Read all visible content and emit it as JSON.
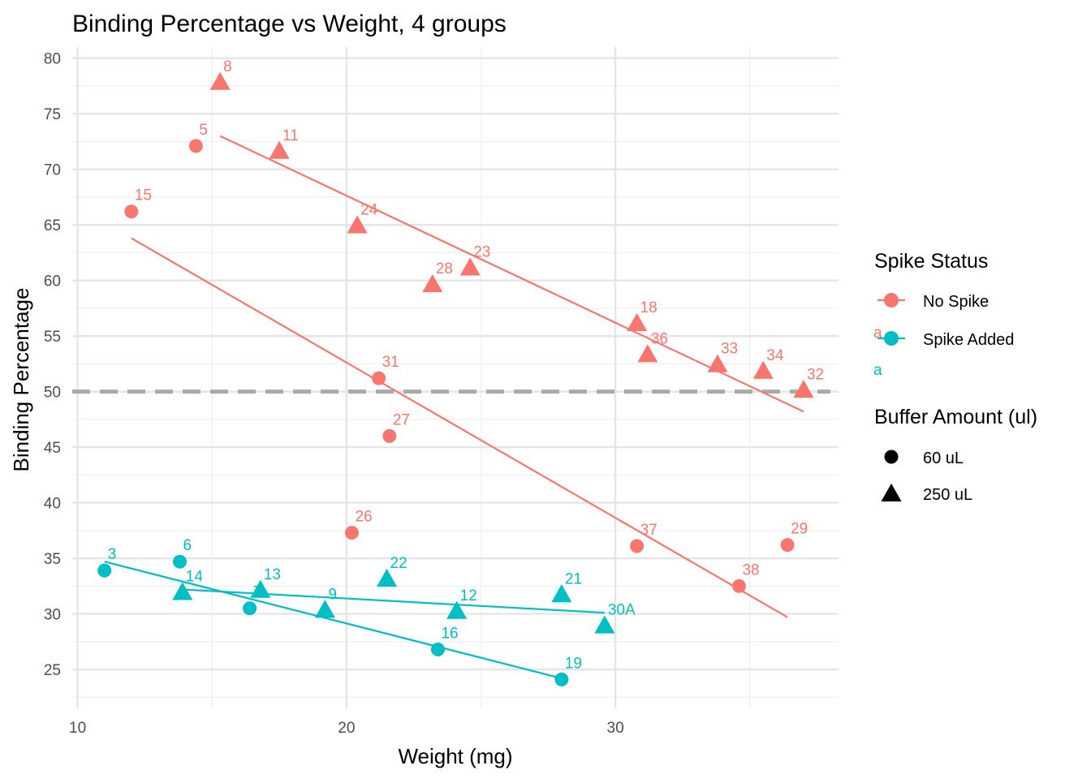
{
  "chart_data": {
    "type": "scatter",
    "title": "Binding Percentage vs Weight, 4 groups",
    "xlabel": "Weight (mg)",
    "ylabel": "Binding Percentage",
    "xlim": [
      9.8,
      38.3
    ],
    "ylim": [
      21.5,
      81
    ],
    "x_ticks": [
      10,
      20,
      30
    ],
    "y_ticks": [
      25,
      30,
      35,
      40,
      45,
      50,
      55,
      60,
      65,
      70,
      75,
      80
    ],
    "grid": true,
    "reference_line": {
      "y": 50,
      "style": "dashed",
      "color": "#aaaaaa"
    },
    "colors": {
      "No Spike": "#F8766D",
      "Spike Added": "#00BFC4"
    },
    "legend": {
      "placement": "right",
      "color_title": "Spike Status",
      "color_entries": [
        "No Spike",
        "Spike Added"
      ],
      "shape_title": "Buffer Amount (ul)",
      "shape_entries": [
        "60 uL",
        "250 uL"
      ],
      "key_text": "a"
    },
    "series": [
      {
        "spike": "No Spike",
        "buffer": "60 uL",
        "shape": "circle",
        "points": [
          {
            "x": 12.0,
            "y": 66.2,
            "label": "15"
          },
          {
            "x": 14.4,
            "y": 72.1,
            "label": "5"
          },
          {
            "x": 21.2,
            "y": 51.2,
            "label": "31"
          },
          {
            "x": 21.6,
            "y": 46.0,
            "label": "27"
          },
          {
            "x": 20.2,
            "y": 37.3,
            "label": "26"
          },
          {
            "x": 30.8,
            "y": 36.1,
            "label": "37"
          },
          {
            "x": 34.6,
            "y": 32.5,
            "label": "38"
          },
          {
            "x": 36.4,
            "y": 36.2,
            "label": "29"
          }
        ],
        "fit": [
          [
            12.0,
            63.8
          ],
          [
            36.4,
            29.7
          ]
        ]
      },
      {
        "spike": "No Spike",
        "buffer": "250 uL",
        "shape": "triangle",
        "points": [
          {
            "x": 15.3,
            "y": 77.8,
            "label": "8"
          },
          {
            "x": 17.5,
            "y": 71.6,
            "label": "11"
          },
          {
            "x": 20.4,
            "y": 64.9,
            "label": "24"
          },
          {
            "x": 23.2,
            "y": 59.6,
            "label": "28"
          },
          {
            "x": 24.6,
            "y": 61.1,
            "label": "23"
          },
          {
            "x": 30.8,
            "y": 56.1,
            "label": "18"
          },
          {
            "x": 31.2,
            "y": 53.3,
            "label": "36"
          },
          {
            "x": 33.8,
            "y": 52.4,
            "label": "33"
          },
          {
            "x": 35.5,
            "y": 51.8,
            "label": "34"
          },
          {
            "x": 37.0,
            "y": 50.1,
            "label": "32"
          }
        ],
        "fit": [
          [
            15.3,
            73.0
          ],
          [
            37.0,
            48.2
          ]
        ]
      },
      {
        "spike": "Spike Added",
        "buffer": "60 uL",
        "shape": "circle",
        "points": [
          {
            "x": 11.0,
            "y": 33.9,
            "label": "3"
          },
          {
            "x": 13.8,
            "y": 34.7,
            "label": "6"
          },
          {
            "x": 16.4,
            "y": 30.5,
            "label": "7"
          },
          {
            "x": 23.4,
            "y": 26.8,
            "label": "16"
          },
          {
            "x": 28.0,
            "y": 24.1,
            "label": "19"
          }
        ],
        "fit": [
          [
            11.0,
            34.7
          ],
          [
            28.0,
            24.2
          ]
        ]
      },
      {
        "spike": "Spike Added",
        "buffer": "250 uL",
        "shape": "triangle",
        "points": [
          {
            "x": 13.9,
            "y": 31.9,
            "label": "14"
          },
          {
            "x": 16.8,
            "y": 32.1,
            "label": "13"
          },
          {
            "x": 19.2,
            "y": 30.3,
            "label": "9"
          },
          {
            "x": 21.5,
            "y": 33.1,
            "label": "22"
          },
          {
            "x": 24.1,
            "y": 30.2,
            "label": "12"
          },
          {
            "x": 28.0,
            "y": 31.7,
            "label": "21"
          },
          {
            "x": 29.6,
            "y": 28.9,
            "label": "30A"
          }
        ],
        "fit": [
          [
            13.9,
            32.2
          ],
          [
            29.6,
            30.1
          ]
        ]
      }
    ]
  }
}
